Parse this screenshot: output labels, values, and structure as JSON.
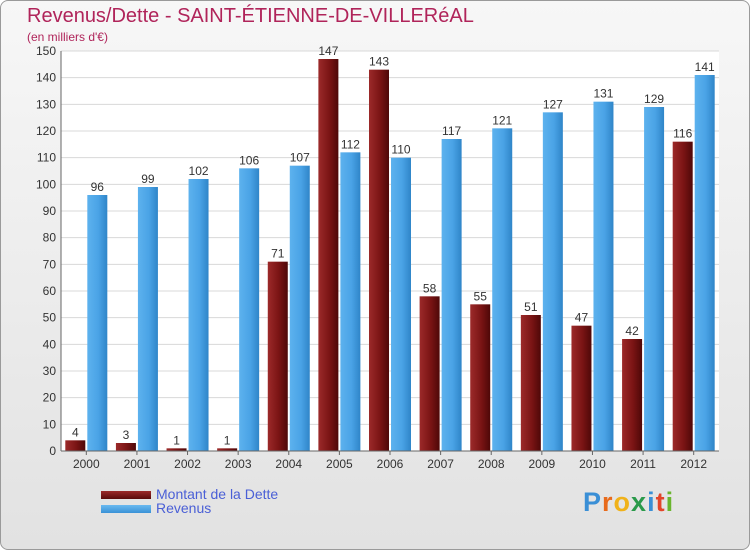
{
  "header": {
    "title": "Revenus/Dette - SAINT-ÉTIENNE-DE-VILLERéAL",
    "subtitle": "(en milliers d'€)"
  },
  "legend": {
    "items": [
      {
        "label": "Montant de la Dette",
        "color": "#8b1a1a"
      },
      {
        "label": "Revenus",
        "color": "#4aa3e6"
      }
    ]
  },
  "logo": {
    "text": "Proxiti"
  },
  "colors": {
    "dette": "#7a1414",
    "revenus": "#4aa3e6",
    "title": "#b0245a",
    "legend_text": "#4a5fd6"
  },
  "chart_data": {
    "type": "bar",
    "title": "Revenus/Dette - SAINT-ÉTIENNE-DE-VILLERéAL",
    "subtitle": "(en milliers d'€)",
    "categories": [
      "2000",
      "2001",
      "2002",
      "2003",
      "2004",
      "2005",
      "2006",
      "2007",
      "2008",
      "2009",
      "2010",
      "2011",
      "2012"
    ],
    "series": [
      {
        "name": "Montant de la Dette",
        "values": [
          4,
          3,
          1,
          1,
          71,
          147,
          143,
          58,
          55,
          51,
          47,
          42,
          116
        ]
      },
      {
        "name": "Revenus",
        "values": [
          96,
          99,
          102,
          106,
          107,
          112,
          110,
          117,
          121,
          127,
          131,
          129,
          141
        ]
      }
    ],
    "ylim": [
      0,
      150
    ],
    "yticks": [
      0,
      10,
      20,
      30,
      40,
      50,
      60,
      70,
      80,
      90,
      100,
      110,
      120,
      130,
      140,
      150
    ],
    "grid": true,
    "legend_position": "bottom-left",
    "data_labels": true
  }
}
